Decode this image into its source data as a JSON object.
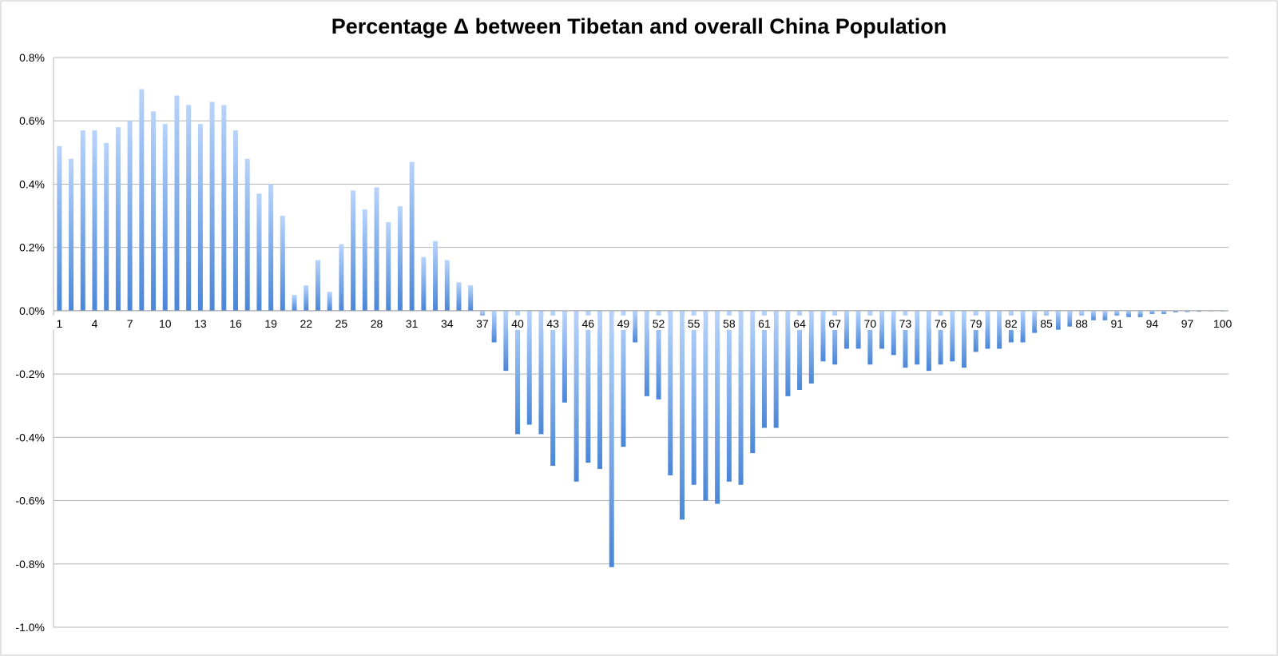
{
  "chart_data": {
    "type": "bar",
    "title": "Percentage Δ  between Tibetan and overall China Population",
    "xlabel": "",
    "ylabel": "",
    "ylim": [
      -0.01,
      0.008
    ],
    "yticks": [
      0.008,
      0.006,
      0.004,
      0.002,
      0.0,
      -0.002,
      -0.004,
      -0.006,
      -0.008,
      -0.01
    ],
    "ytick_labels": [
      "0.8%",
      "0.6%",
      "0.4%",
      "0.2%",
      "0.0%",
      "-0.2%",
      "-0.4%",
      "-0.6%",
      "-0.8%",
      "-1.0%"
    ],
    "grid": "horizontal",
    "legend": "none",
    "bar_color": "#4a86d8",
    "bar_color_light": "#b8d4fb",
    "x_tick_labels": [
      "1",
      "4",
      "7",
      "10",
      "13",
      "16",
      "19",
      "22",
      "25",
      "28",
      "31",
      "34",
      "37",
      "40",
      "43",
      "46",
      "49",
      "52",
      "55",
      "58",
      "61",
      "64",
      "67",
      "70",
      "73",
      "76",
      "79",
      "82",
      "85",
      "88",
      "91",
      "94",
      "97",
      "100"
    ],
    "categories": [
      1,
      2,
      3,
      4,
      5,
      6,
      7,
      8,
      9,
      10,
      11,
      12,
      13,
      14,
      15,
      16,
      17,
      18,
      19,
      20,
      21,
      22,
      23,
      24,
      25,
      26,
      27,
      28,
      29,
      30,
      31,
      32,
      33,
      34,
      35,
      36,
      37,
      38,
      39,
      40,
      41,
      42,
      43,
      44,
      45,
      46,
      47,
      48,
      49,
      50,
      51,
      52,
      53,
      54,
      55,
      56,
      57,
      58,
      59,
      60,
      61,
      62,
      63,
      64,
      65,
      66,
      67,
      68,
      69,
      70,
      71,
      72,
      73,
      74,
      75,
      76,
      77,
      78,
      79,
      80,
      81,
      82,
      83,
      84,
      85,
      86,
      87,
      88,
      89,
      90,
      91,
      92,
      93,
      94,
      95,
      96,
      97,
      98,
      99,
      100
    ],
    "values": [
      0.0052,
      0.0048,
      0.0057,
      0.0057,
      0.0053,
      0.0058,
      0.006,
      0.007,
      0.0063,
      0.0059,
      0.0068,
      0.0065,
      0.0059,
      0.0066,
      0.0065,
      0.0057,
      0.0048,
      0.0037,
      0.004,
      0.003,
      0.0005,
      0.0008,
      0.0016,
      0.0006,
      0.0021,
      0.0038,
      0.0032,
      0.0039,
      0.0028,
      0.0033,
      0.0047,
      0.0017,
      0.0022,
      0.0016,
      0.0009,
      0.0008,
      -0.0003,
      -0.001,
      -0.0019,
      -0.0039,
      -0.0036,
      -0.0039,
      -0.0049,
      -0.0029,
      -0.0054,
      -0.0048,
      -0.005,
      -0.0081,
      -0.0043,
      -0.001,
      -0.0027,
      -0.0028,
      -0.0052,
      -0.0066,
      -0.0055,
      -0.006,
      -0.0061,
      -0.0054,
      -0.0055,
      -0.0045,
      -0.0037,
      -0.0037,
      -0.0027,
      -0.0025,
      -0.0023,
      -0.0016,
      -0.0017,
      -0.0012,
      -0.0012,
      -0.0017,
      -0.0012,
      -0.0014,
      -0.0018,
      -0.0017,
      -0.0019,
      -0.0017,
      -0.0016,
      -0.0018,
      -0.0013,
      -0.0012,
      -0.0012,
      -0.001,
      -0.001,
      -0.0007,
      -0.0006,
      -0.0006,
      -0.0005,
      -0.0004,
      -0.0003,
      -0.0003,
      -0.0002,
      -0.0002,
      -0.0002,
      -0.0001,
      -0.0001,
      -5e-05,
      -4e-05,
      -3e-05,
      -2e-05,
      -2e-05
    ]
  }
}
